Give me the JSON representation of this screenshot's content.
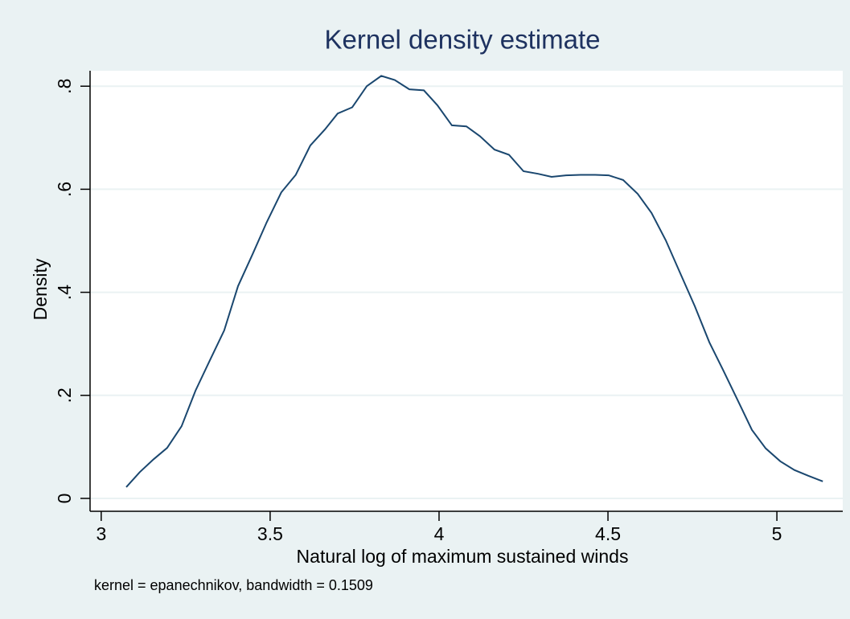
{
  "chart_data": {
    "type": "line",
    "title": "Kernel density estimate",
    "x_label": "Natural log of maximum sustained winds",
    "y_label": "Density",
    "note": "kernel = epanechnikov, bandwidth = 0.1509",
    "x": [
      3.074,
      3.114,
      3.155,
      3.195,
      3.238,
      3.279,
      3.321,
      3.364,
      3.405,
      3.448,
      3.49,
      3.533,
      3.576,
      3.619,
      3.662,
      3.7,
      3.743,
      3.786,
      3.829,
      3.869,
      3.912,
      3.955,
      3.995,
      4.038,
      4.081,
      4.121,
      4.164,
      4.207,
      4.25,
      4.293,
      4.333,
      4.376,
      4.419,
      4.462,
      4.502,
      4.545,
      4.588,
      4.629,
      4.671,
      4.714,
      4.757,
      4.8,
      4.84,
      4.883,
      4.926,
      4.967,
      5.01,
      5.052,
      5.093,
      5.136
    ],
    "values": [
      0.022,
      0.051,
      0.076,
      0.098,
      0.14,
      0.209,
      0.267,
      0.326,
      0.412,
      0.474,
      0.536,
      0.594,
      0.628,
      0.685,
      0.716,
      0.747,
      0.759,
      0.8,
      0.82,
      0.812,
      0.794,
      0.792,
      0.763,
      0.724,
      0.722,
      0.703,
      0.677,
      0.667,
      0.635,
      0.63,
      0.624,
      0.627,
      0.628,
      0.628,
      0.627,
      0.618,
      0.591,
      0.554,
      0.501,
      0.437,
      0.373,
      0.303,
      0.25,
      0.192,
      0.133,
      0.097,
      0.072,
      0.055,
      0.044,
      0.033
    ],
    "color": "#1a476f",
    "xlim": [
      2.967,
      5.195
    ],
    "ylim": [
      -0.025,
      0.83
    ],
    "xticks": [
      3,
      3.5,
      4,
      4.5,
      5
    ],
    "yticks": [
      0,
      {
        "value": 0.2,
        "label": ".2"
      },
      {
        "value": 0.4,
        "label": ".4"
      },
      {
        "value": 0.6,
        "label": ".6"
      },
      {
        "value": 0.8,
        "label": ".8"
      }
    ],
    "grid": true
  }
}
